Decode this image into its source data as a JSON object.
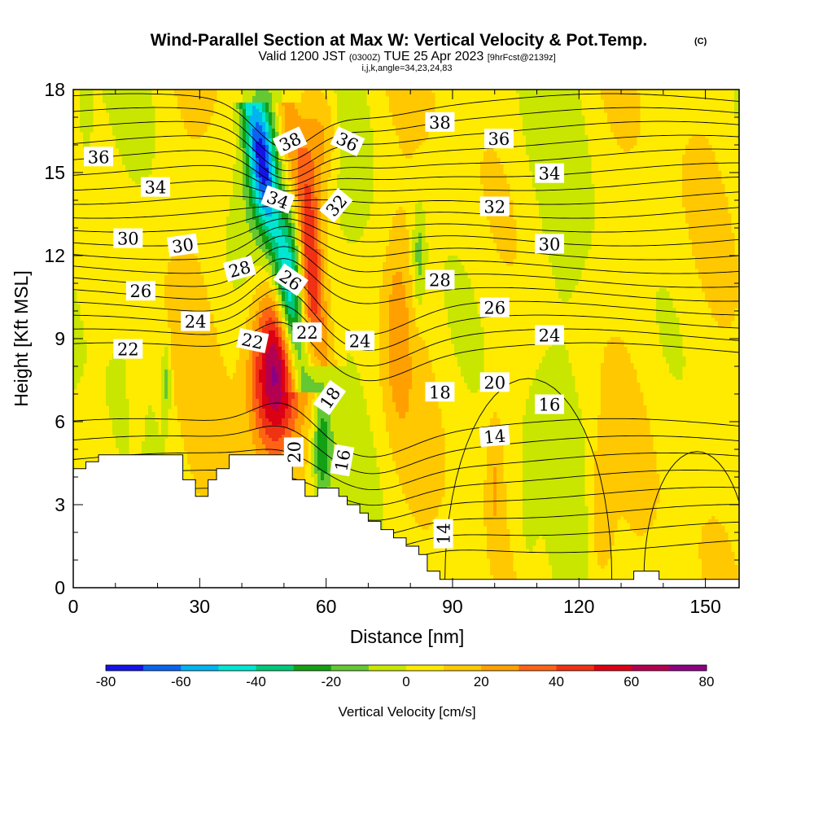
{
  "title": {
    "line1": "Wind-Parallel Section at Max W: Vertical Velocity & Pot.Temp.",
    "line1_suffix": "(C)",
    "line2_a": "Valid 1200 JST",
    "line2_b": "(0300Z)",
    "line2_c": "TUE 25 Apr 2023",
    "line2_d": "[9hrFcst@2139z]",
    "line3": "i,j,k,angle=34,23,24,83"
  },
  "chart_data": {
    "type": "heatmap",
    "xlabel": "Distance [nm]",
    "ylabel": "Height [Kft MSL]",
    "xlim": [
      0,
      158
    ],
    "ylim": [
      0,
      18
    ],
    "x_ticks": [
      0,
      30,
      60,
      90,
      120,
      150
    ],
    "y_ticks": [
      0,
      3,
      6,
      9,
      12,
      15,
      18
    ],
    "colorbar": {
      "title": "Vertical Velocity [cm/s]",
      "levels": [
        -80,
        -70,
        -60,
        -50,
        -40,
        -30,
        -20,
        -10,
        0,
        10,
        20,
        30,
        40,
        50,
        60,
        70,
        80
      ],
      "tick_labels": [
        "-80",
        "-60",
        "-40",
        "-20",
        "0",
        "20",
        "40",
        "60",
        "80"
      ],
      "tick_values": [
        -80,
        -60,
        -40,
        -20,
        0,
        20,
        40,
        60,
        80
      ],
      "colors": [
        "#1414e6",
        "#0a64f0",
        "#00b4f0",
        "#00e6d2",
        "#00c878",
        "#14a014",
        "#64c832",
        "#c8e600",
        "#ffeb00",
        "#ffc800",
        "#ffa000",
        "#ff6414",
        "#f03214",
        "#dc0014",
        "#b40050",
        "#8c0082"
      ]
    },
    "terrain_outline_kft": [
      [
        0,
        4.3
      ],
      [
        1,
        4.3
      ],
      [
        1,
        4.3
      ],
      [
        3,
        4.3
      ],
      [
        3,
        4.55
      ],
      [
        6,
        4.55
      ],
      [
        6,
        4.8
      ],
      [
        26,
        4.8
      ],
      [
        26,
        3.9
      ],
      [
        29,
        3.9
      ],
      [
        29,
        3.3
      ],
      [
        32,
        3.3
      ],
      [
        32,
        3.9
      ],
      [
        34,
        3.9
      ],
      [
        34,
        4.3
      ],
      [
        37,
        4.3
      ],
      [
        37,
        4.8
      ],
      [
        52,
        4.8
      ],
      [
        52,
        3.9
      ],
      [
        55,
        3.9
      ],
      [
        55,
        3.3
      ],
      [
        58,
        3.3
      ],
      [
        58,
        3.6
      ],
      [
        63,
        3.6
      ],
      [
        63,
        3.3
      ],
      [
        65,
        3.3
      ],
      [
        65,
        3.0
      ],
      [
        68,
        3.0
      ],
      [
        68,
        2.7
      ],
      [
        70,
        2.7
      ],
      [
        70,
        2.4
      ],
      [
        73,
        2.4
      ],
      [
        73,
        2.1
      ],
      [
        76,
        2.1
      ],
      [
        76,
        1.8
      ],
      [
        79,
        1.8
      ],
      [
        79,
        1.5
      ],
      [
        82,
        1.5
      ],
      [
        82,
        1.2
      ],
      [
        84,
        1.2
      ],
      [
        84,
        0.6
      ],
      [
        87,
        0.6
      ],
      [
        87,
        0.3
      ],
      [
        133,
        0.3
      ],
      [
        133,
        0.6
      ],
      [
        139,
        0.6
      ],
      [
        139,
        0.3
      ],
      [
        158,
        0.3
      ]
    ],
    "vertical_velocity_features": [
      {
        "kind": "updraft",
        "x": 48,
        "y": 7.8,
        "rx": 6,
        "ry": 3.0,
        "peak": 75
      },
      {
        "kind": "updraft",
        "x": 56,
        "y": 13.0,
        "rx": 3,
        "ry": 5.5,
        "peak": 25
      },
      {
        "kind": "updraft",
        "x": 60,
        "y": 16.5,
        "rx": 3,
        "ry": 2.0,
        "peak": 20
      },
      {
        "kind": "updraft",
        "x": 77,
        "y": 9.5,
        "rx": 3,
        "ry": 3.5,
        "peak": 15
      },
      {
        "kind": "downdraft",
        "x": 45,
        "y": 15.5,
        "rx": 4,
        "ry": 2.5,
        "peak": -45
      },
      {
        "kind": "downdraft",
        "x": 52,
        "y": 11.5,
        "rx": 3,
        "ry": 3.0,
        "peak": -40
      },
      {
        "kind": "downdraft",
        "x": 59,
        "y": 5.0,
        "rx": 2,
        "ry": 2.0,
        "peak": -30
      },
      {
        "kind": "updraft",
        "x": 100,
        "y": 4.0,
        "rx": 2,
        "ry": 3.0,
        "peak": 15
      },
      {
        "kind": "updraft",
        "x": 125,
        "y": 2.5,
        "rx": 3,
        "ry": 2.5,
        "peak": 18
      },
      {
        "kind": "updraft",
        "x": 15,
        "y": 7.0,
        "rx": 2,
        "ry": 3.0,
        "peak": 10
      },
      {
        "kind": "downdraft",
        "x": 108,
        "y": 2.5,
        "rx": 2,
        "ry": 2.0,
        "peak": -10
      },
      {
        "kind": "downdraft",
        "x": 82,
        "y": 12.0,
        "rx": 1.5,
        "ry": 2.0,
        "peak": -20
      },
      {
        "kind": "downdraft",
        "x": 3,
        "y": 17.0,
        "rx": 1.5,
        "ry": 1.5,
        "peak": -15
      },
      {
        "kind": "downdraft",
        "x": 22,
        "y": 7.5,
        "rx": 1,
        "ry": 1.5,
        "peak": -20
      }
    ],
    "theta_contour_labels": [
      {
        "text": "36",
        "x": 6,
        "y": 15.55,
        "rot": 0
      },
      {
        "text": "34",
        "x": 19.5,
        "y": 14.45,
        "rot": 0
      },
      {
        "text": "30",
        "x": 13,
        "y": 12.6,
        "rot": 0
      },
      {
        "text": "30",
        "x": 26,
        "y": 12.35,
        "rot": -8
      },
      {
        "text": "28",
        "x": 39.5,
        "y": 11.5,
        "rot": -15
      },
      {
        "text": "26",
        "x": 16,
        "y": 10.7,
        "rot": 0
      },
      {
        "text": "24",
        "x": 29,
        "y": 9.6,
        "rot": 0
      },
      {
        "text": "22",
        "x": 13,
        "y": 8.6,
        "rot": 0
      },
      {
        "text": "22",
        "x": 42.5,
        "y": 8.9,
        "rot": 12
      },
      {
        "text": "22",
        "x": 55.5,
        "y": 9.2,
        "rot": 0
      },
      {
        "text": "38",
        "x": 51.5,
        "y": 16.1,
        "rot": -25
      },
      {
        "text": "36",
        "x": 65,
        "y": 16.1,
        "rot": 25
      },
      {
        "text": "34",
        "x": 48.5,
        "y": 14.0,
        "rot": 20
      },
      {
        "text": "32",
        "x": 62.5,
        "y": 13.8,
        "rot": -50
      },
      {
        "text": "26",
        "x": 51.5,
        "y": 11.1,
        "rot": 35
      },
      {
        "text": "24",
        "x": 68,
        "y": 8.9,
        "rot": 0
      },
      {
        "text": "18",
        "x": 61,
        "y": 6.85,
        "rot": -55
      },
      {
        "text": "20",
        "x": 52.5,
        "y": 4.9,
        "rot": -90
      },
      {
        "text": "16",
        "x": 64,
        "y": 4.6,
        "rot": -80
      },
      {
        "text": "38",
        "x": 87,
        "y": 16.8,
        "rot": 0
      },
      {
        "text": "36",
        "x": 101,
        "y": 16.2,
        "rot": 0
      },
      {
        "text": "34",
        "x": 113,
        "y": 14.95,
        "rot": 0
      },
      {
        "text": "32",
        "x": 100,
        "y": 13.75,
        "rot": 0
      },
      {
        "text": "30",
        "x": 113,
        "y": 12.4,
        "rot": 0
      },
      {
        "text": "28",
        "x": 87,
        "y": 11.1,
        "rot": 0
      },
      {
        "text": "26",
        "x": 100,
        "y": 10.1,
        "rot": 0
      },
      {
        "text": "24",
        "x": 113,
        "y": 9.1,
        "rot": 0
      },
      {
        "text": "20",
        "x": 100,
        "y": 7.4,
        "rot": 0
      },
      {
        "text": "18",
        "x": 87,
        "y": 7.05,
        "rot": 0
      },
      {
        "text": "16",
        "x": 113,
        "y": 6.6,
        "rot": 0
      },
      {
        "text": "14",
        "x": 100,
        "y": 5.45,
        "rot": -5
      },
      {
        "text": "14",
        "x": 88,
        "y": 1.95,
        "rot": -90
      }
    ]
  }
}
